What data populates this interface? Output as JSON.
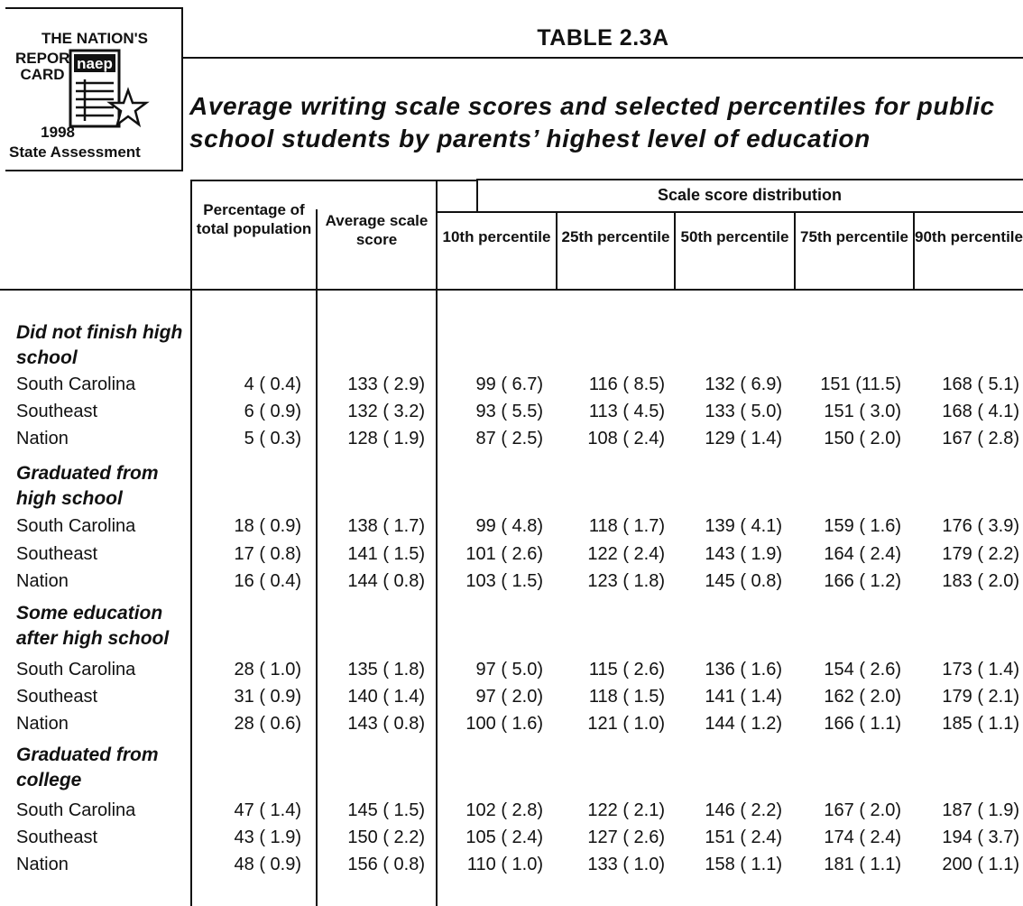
{
  "logo": {
    "line1": "THE NATION'S",
    "line2": "REPORT CARD",
    "brand": "naep",
    "year": "1998",
    "state_assessment": "State Assessment"
  },
  "table_label": "TABLE 2.3A",
  "title": "Average writing scale scores and selected percentiles for public school students by parents’ highest level of education",
  "columns": {
    "percentage": "Percentage of total population",
    "average": "Average scale score",
    "distribution": "Scale score distribution",
    "p10": "10th percentile",
    "p25": "25th percentile",
    "p50": "50th percentile",
    "p75": "75th percentile",
    "p90": "90th percentile"
  },
  "groups": [
    {
      "label": "Did not finish high school",
      "rows": [
        {
          "name": "South Carolina",
          "pct": "4 ( 0.4)",
          "avg": "133 ( 2.9)",
          "p10": "99 ( 6.7)",
          "p25": "116 ( 8.5)",
          "p50": "132 ( 6.9)",
          "p75": "151 (11.5)",
          "p90": "168 ( 5.1)"
        },
        {
          "name": "Southeast",
          "pct": "6 ( 0.9)",
          "avg": "132 ( 3.2)",
          "p10": "93 ( 5.5)",
          "p25": "113 ( 4.5)",
          "p50": "133 ( 5.0)",
          "p75": "151 ( 3.0)",
          "p90": "168 ( 4.1)"
        },
        {
          "name": "Nation",
          "pct": "5 ( 0.3)",
          "avg": "128 ( 1.9)",
          "p10": "87 ( 2.5)",
          "p25": "108 ( 2.4)",
          "p50": "129 ( 1.4)",
          "p75": "150 ( 2.0)",
          "p90": "167 ( 2.8)"
        }
      ]
    },
    {
      "label": "Graduated from high school",
      "rows": [
        {
          "name": "South Carolina",
          "pct": "18 ( 0.9)",
          "avg": "138 ( 1.7)",
          "p10": "99 ( 4.8)",
          "p25": "118 ( 1.7)",
          "p50": "139 ( 4.1)",
          "p75": "159 ( 1.6)",
          "p90": "176 ( 3.9)"
        },
        {
          "name": "Southeast",
          "pct": "17 ( 0.8)",
          "avg": "141 ( 1.5)",
          "p10": "101 ( 2.6)",
          "p25": "122 ( 2.4)",
          "p50": "143 ( 1.9)",
          "p75": "164 ( 2.4)",
          "p90": "179 ( 2.2)"
        },
        {
          "name": "Nation",
          "pct": "16 ( 0.4)",
          "avg": "144 ( 0.8)",
          "p10": "103 ( 1.5)",
          "p25": "123 ( 1.8)",
          "p50": "145 ( 0.8)",
          "p75": "166 ( 1.2)",
          "p90": "183 ( 2.0)"
        }
      ]
    },
    {
      "label": "Some education after high school",
      "rows": [
        {
          "name": "South Carolina",
          "pct": "28 ( 1.0)",
          "avg": "135 ( 1.8)",
          "p10": "97 ( 5.0)",
          "p25": "115 ( 2.6)",
          "p50": "136 ( 1.6)",
          "p75": "154 ( 2.6)",
          "p90": "173 ( 1.4)"
        },
        {
          "name": "Southeast",
          "pct": "31 ( 0.9)",
          "avg": "140 ( 1.4)",
          "p10": "97 ( 2.0)",
          "p25": "118 ( 1.5)",
          "p50": "141 ( 1.4)",
          "p75": "162 ( 2.0)",
          "p90": "179 ( 2.1)"
        },
        {
          "name": "Nation",
          "pct": "28 ( 0.6)",
          "avg": "143 ( 0.8)",
          "p10": "100 ( 1.6)",
          "p25": "121 ( 1.0)",
          "p50": "144 ( 1.2)",
          "p75": "166 ( 1.1)",
          "p90": "185 ( 1.1)"
        }
      ]
    },
    {
      "label": "Graduated from college",
      "rows": [
        {
          "name": "South Carolina",
          "pct": "47 ( 1.4)",
          "avg": "145 ( 1.5)",
          "p10": "102 ( 2.8)",
          "p25": "122 ( 2.1)",
          "p50": "146 ( 2.2)",
          "p75": "167 ( 2.0)",
          "p90": "187 ( 1.9)"
        },
        {
          "name": "Southeast",
          "pct": "43 ( 1.9)",
          "avg": "150 ( 2.2)",
          "p10": "105 ( 2.4)",
          "p25": "127 ( 2.6)",
          "p50": "151 ( 2.4)",
          "p75": "174 ( 2.4)",
          "p90": "194 ( 3.7)"
        },
        {
          "name": "Nation",
          "pct": "48 ( 0.9)",
          "avg": "156 ( 0.8)",
          "p10": "110 ( 1.0)",
          "p25": "133 ( 1.0)",
          "p50": "158 ( 1.1)",
          "p75": "181 ( 1.1)",
          "p90": "200 ( 1.1)"
        }
      ]
    }
  ]
}
